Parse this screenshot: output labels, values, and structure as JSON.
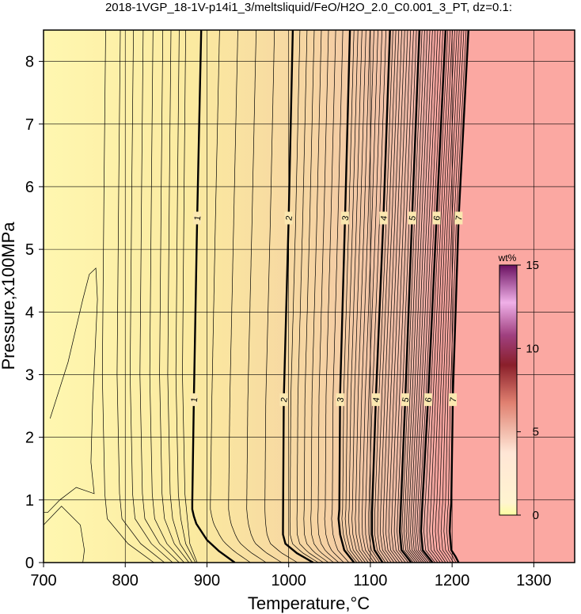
{
  "title": "2018-1VGP_18-1V-p14i1_3/meltsliquid/FeO/H2O_2.0_C0.001_3_PT, dz=0.1:",
  "chart_data": {
    "type": "heatmap",
    "title": "2018-1VGP_18-1V-p14i1_3/meltsliquid/FeO/H2O_2.0_C0.001_3_PT, dz=0.1:",
    "xlabel": "Temperature,°C",
    "ylabel": "Pressure,x100MPa",
    "xlim": [
      700,
      1350
    ],
    "ylim": [
      0,
      8.5
    ],
    "xticks": [
      700,
      800,
      900,
      1000,
      1100,
      1200,
      1300
    ],
    "yticks": [
      0,
      1,
      2,
      3,
      4,
      5,
      6,
      7,
      8
    ],
    "grid": true,
    "colorbar": {
      "title": "wt%",
      "range": [
        0,
        15
      ],
      "ticks": [
        0,
        5,
        10,
        15
      ],
      "placement": "right"
    },
    "colors": {
      "low": "#fff7b0",
      "high": "#f9a8a0",
      "grid": "#000000"
    },
    "contour_labels": [
      "1",
      "2",
      "3",
      "4",
      "5",
      "6",
      "7"
    ],
    "major_contours": [
      {
        "level": 1,
        "points": [
          [
            934,
            0
          ],
          [
            915,
            0.18
          ],
          [
            900,
            0.36
          ],
          [
            893,
            0.5
          ],
          [
            887,
            0.62
          ],
          [
            884,
            0.74
          ],
          [
            882,
            0.85
          ],
          [
            882,
            0.95
          ],
          [
            884,
            2.6
          ],
          [
            888,
            5.5
          ],
          [
            893,
            8.5
          ]
        ]
      },
      {
        "level": 2,
        "points": [
          [
            1030,
            0
          ],
          [
            1010,
            0.15
          ],
          [
            996,
            0.3
          ],
          [
            993,
            0.45
          ],
          [
            993,
            0.55
          ],
          [
            994,
            2.6
          ],
          [
            1000,
            5.5
          ],
          [
            1005,
            8.5
          ]
        ]
      },
      {
        "level": 3,
        "points": [
          [
            1080,
            0
          ],
          [
            1068,
            0.2
          ],
          [
            1063,
            0.45
          ],
          [
            1061,
            0.7
          ],
          [
            1062,
            0.85
          ],
          [
            1063,
            2.7
          ],
          [
            1069,
            5.5
          ],
          [
            1075,
            8.5
          ]
        ]
      },
      {
        "level": 4,
        "points": [
          [
            1115,
            0
          ],
          [
            1105,
            0.2
          ],
          [
            1102,
            0.45
          ],
          [
            1102,
            0.8
          ],
          [
            1107,
            2.7
          ],
          [
            1116,
            5.5
          ],
          [
            1124,
            8.5
          ]
        ]
      },
      {
        "level": 5,
        "points": [
          [
            1150,
            0
          ],
          [
            1138,
            0.2
          ],
          [
            1136,
            0.5
          ],
          [
            1137,
            0.8
          ],
          [
            1143,
            2.7
          ],
          [
            1151,
            5.5
          ],
          [
            1160,
            8.5
          ]
        ]
      },
      {
        "level": 6,
        "points": [
          [
            1176,
            0
          ],
          [
            1164,
            0.2
          ],
          [
            1162,
            0.5
          ],
          [
            1163,
            0.8
          ],
          [
            1171,
            2.7
          ],
          [
            1181,
            5.5
          ],
          [
            1192,
            8.5
          ]
        ]
      },
      {
        "level": 7,
        "points": [
          [
            1208,
            0
          ],
          [
            1204,
            0.1
          ],
          [
            1199,
            0.2
          ],
          [
            1197,
            0.5
          ],
          [
            1198,
            0.8
          ],
          [
            1199,
            0.95
          ],
          [
            1201,
            2.7
          ],
          [
            1208,
            5.5
          ],
          [
            1220,
            8.5
          ]
        ]
      }
    ]
  }
}
